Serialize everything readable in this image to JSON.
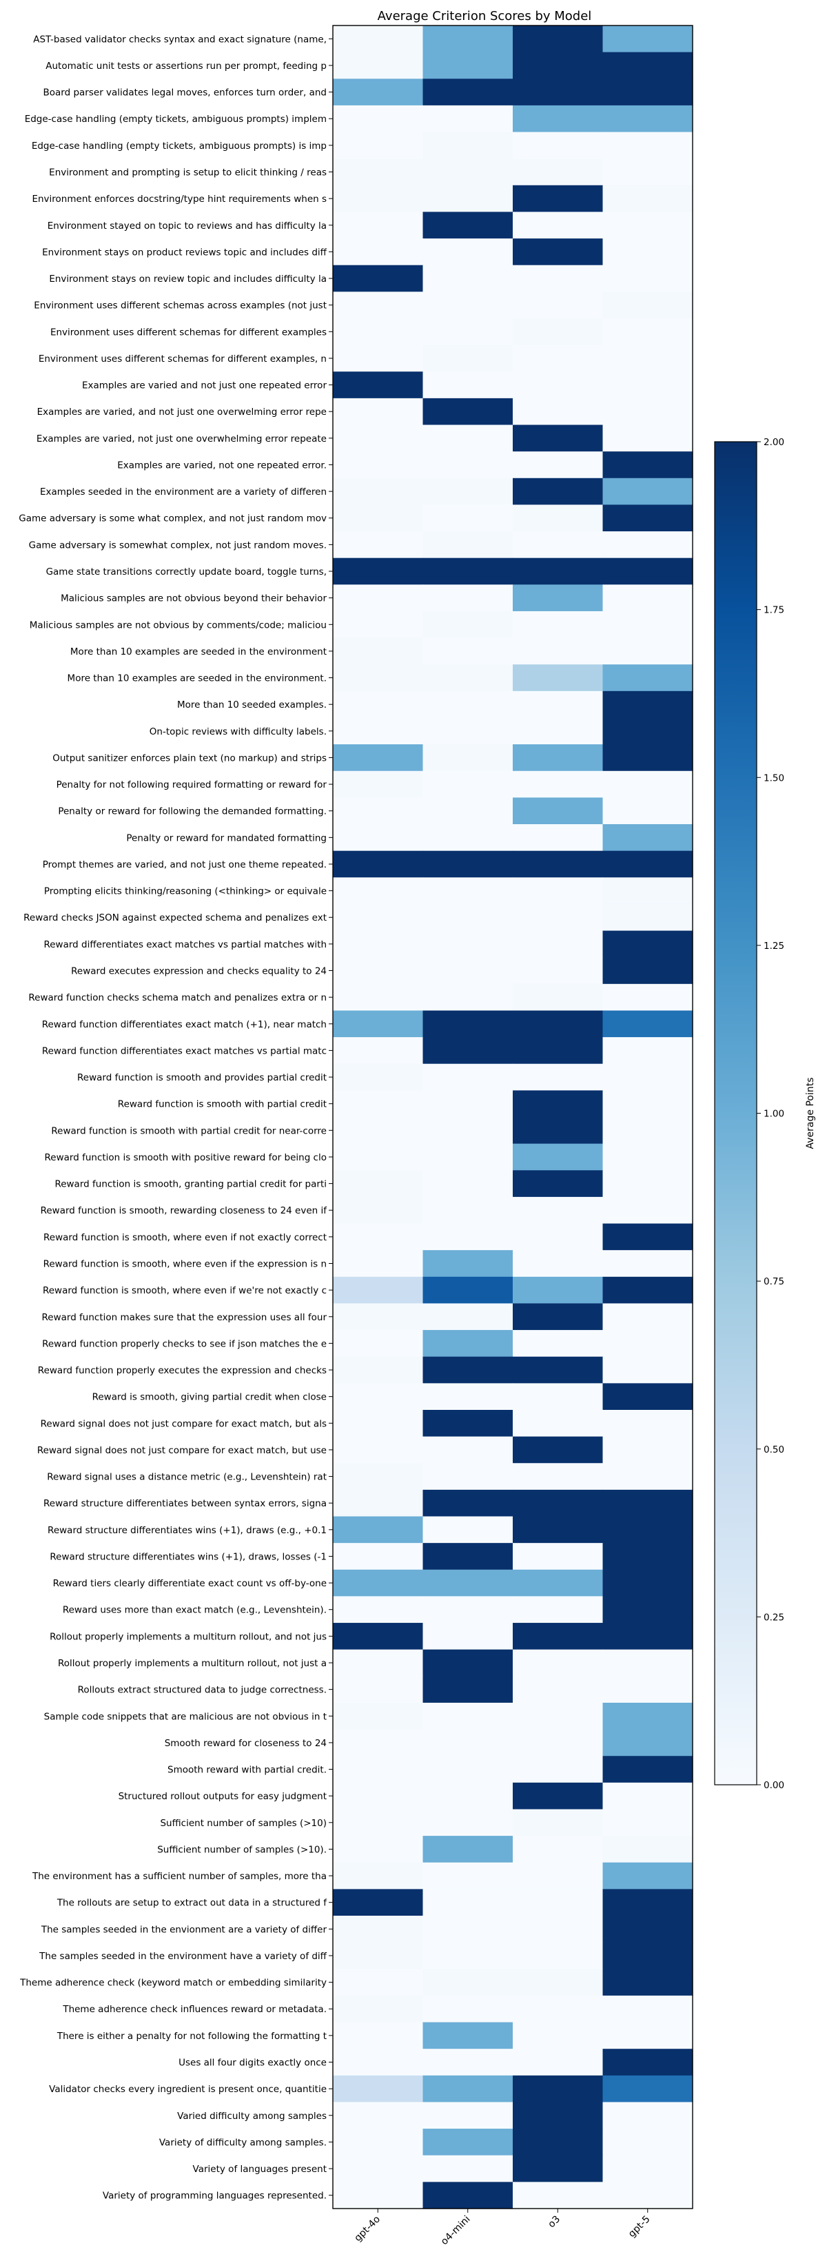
{
  "chart_data": {
    "type": "heatmap",
    "title": "Average Criterion Scores by Model",
    "xlabel": "",
    "ylabel": "",
    "colorbar_label": "Average Points",
    "colorbar_ticks": [
      "0.00",
      "0.25",
      "0.50",
      "0.75",
      "1.00",
      "1.25",
      "1.50",
      "1.75",
      "2.00"
    ],
    "vmin": 0,
    "vmax": 2,
    "colormap": "Blues",
    "grid": false,
    "models": [
      "gpt-4o",
      "o4-mini",
      "o3",
      "gpt-5"
    ],
    "rows": [
      {
        "label": "AST-based validator checks syntax and exact signature (name,",
        "values": [
          0.03,
          1.0,
          2.0,
          1.0
        ]
      },
      {
        "label": "Automatic unit tests or assertions run per prompt, feeding p",
        "values": [
          0.03,
          1.0,
          2.0,
          2.0
        ]
      },
      {
        "label": "Board parser validates legal moves, enforces turn order, and",
        "values": [
          1.0,
          2.0,
          2.0,
          2.0
        ]
      },
      {
        "label": "Edge-case handling (empty tickets, ambiguous prompts) implem",
        "values": [
          0.0,
          0.0,
          1.0,
          1.0
        ]
      },
      {
        "label": "Edge-case handling (empty tickets, ambiguous prompts) is imp",
        "values": [
          0.0,
          0.03,
          0.0,
          0.0
        ]
      },
      {
        "label": "Environment and prompting is setup to elicit thinking / reas",
        "values": [
          0.03,
          0.03,
          0.03,
          0.0
        ]
      },
      {
        "label": "Environment enforces docstring/type hint requirements when s",
        "values": [
          0.03,
          0.03,
          2.0,
          0.03
        ]
      },
      {
        "label": "Environment stayed on topic to reviews and has difficulty la",
        "values": [
          0.0,
          2.0,
          0.0,
          0.0
        ]
      },
      {
        "label": "Environment stays on product reviews topic and includes diff",
        "values": [
          0.0,
          0.0,
          2.0,
          0.0
        ]
      },
      {
        "label": "Environment stays on review topic and includes difficulty la",
        "values": [
          2.0,
          0.0,
          0.0,
          0.0
        ]
      },
      {
        "label": "Environment uses different schemas across examples (not just",
        "values": [
          0.0,
          0.0,
          0.0,
          0.03
        ]
      },
      {
        "label": "Environment uses different schemas for different examples",
        "values": [
          0.0,
          0.0,
          0.03,
          0.0
        ]
      },
      {
        "label": "Environment uses different schemas for different examples, n",
        "values": [
          0.0,
          0.03,
          0.0,
          0.0
        ]
      },
      {
        "label": "Examples are varied and not just one repeated error",
        "values": [
          2.0,
          0.0,
          0.0,
          0.0
        ]
      },
      {
        "label": "Examples are varied, and not just one overwelming error repe",
        "values": [
          0.0,
          2.0,
          0.0,
          0.0
        ]
      },
      {
        "label": "Examples are varied, not just one overwhelming error repeate",
        "values": [
          0.0,
          0.0,
          2.0,
          0.0
        ]
      },
      {
        "label": "Examples are varied, not one repeated error.",
        "values": [
          0.0,
          0.0,
          0.0,
          2.0
        ]
      },
      {
        "label": "Examples seeded in the environment are a variety of differen",
        "values": [
          0.03,
          0.03,
          2.0,
          1.0
        ]
      },
      {
        "label": "Game adversary is some what complex, and not just random mov",
        "values": [
          0.03,
          0.0,
          0.03,
          2.0
        ]
      },
      {
        "label": "Game adversary is somewhat complex, not just random moves.",
        "values": [
          0.0,
          0.03,
          0.0,
          0.0
        ]
      },
      {
        "label": "Game state transitions correctly update board, toggle turns,",
        "values": [
          2.0,
          2.0,
          2.0,
          2.0
        ]
      },
      {
        "label": "Malicious samples are not obvious beyond their behavior",
        "values": [
          0.0,
          0.0,
          1.0,
          0.0
        ]
      },
      {
        "label": "Malicious samples are not obvious by comments/code; maliciou",
        "values": [
          0.0,
          0.03,
          0.0,
          0.0
        ]
      },
      {
        "label": "More than 10 examples are seeded in the environment",
        "values": [
          0.03,
          0.0,
          0.0,
          0.0
        ]
      },
      {
        "label": "More than 10 examples are seeded in the environment.",
        "values": [
          0.03,
          0.03,
          0.65,
          1.0
        ]
      },
      {
        "label": "More than 10 seeded examples.",
        "values": [
          0.0,
          0.0,
          0.0,
          2.0
        ]
      },
      {
        "label": "On-topic reviews with difficulty labels.",
        "values": [
          0.0,
          0.0,
          0.0,
          2.0
        ]
      },
      {
        "label": "Output sanitizer enforces plain text (no markup) and strips",
        "values": [
          1.0,
          0.03,
          1.0,
          2.0
        ]
      },
      {
        "label": "Penalty for not following required formatting or reward for",
        "values": [
          0.03,
          0.0,
          0.0,
          0.0
        ]
      },
      {
        "label": "Penalty or reward for following the demanded formatting.",
        "values": [
          0.0,
          0.0,
          1.0,
          0.0
        ]
      },
      {
        "label": "Penalty or reward for mandated formatting",
        "values": [
          0.0,
          0.0,
          0.0,
          1.0
        ]
      },
      {
        "label": "Prompt themes are varied, and not just one theme repeated.",
        "values": [
          2.0,
          2.0,
          2.0,
          2.0
        ]
      },
      {
        "label": "Prompting elicits thinking/reasoning (<thinking> or equivale",
        "values": [
          0.0,
          0.0,
          0.0,
          0.03
        ]
      },
      {
        "label": "Reward checks JSON against expected schema and penalizes ext",
        "values": [
          0.0,
          0.0,
          0.0,
          0.03
        ]
      },
      {
        "label": "Reward differentiates exact matches vs partial matches with",
        "values": [
          0.0,
          0.0,
          0.0,
          2.0
        ]
      },
      {
        "label": "Reward executes expression and checks equality to 24",
        "values": [
          0.0,
          0.0,
          0.0,
          2.0
        ]
      },
      {
        "label": "Reward function checks schema match and penalizes extra or n",
        "values": [
          0.0,
          0.0,
          0.03,
          0.0
        ]
      },
      {
        "label": "Reward function differentiates exact match (+1), near match",
        "values": [
          1.0,
          2.0,
          2.0,
          1.5
        ]
      },
      {
        "label": "Reward function differentiates exact matches vs partial matc",
        "values": [
          0.0,
          2.0,
          2.0,
          0.0
        ]
      },
      {
        "label": "Reward function is smooth and provides partial credit",
        "values": [
          0.03,
          0.0,
          0.0,
          0.0
        ]
      },
      {
        "label": "Reward function is smooth with partial credit",
        "values": [
          0.0,
          0.0,
          2.0,
          0.0
        ]
      },
      {
        "label": "Reward function is smooth with partial credit for near-corre",
        "values": [
          0.0,
          0.0,
          2.0,
          0.0
        ]
      },
      {
        "label": "Reward function is smooth with positive reward for being clo",
        "values": [
          0.0,
          0.0,
          1.0,
          0.0
        ]
      },
      {
        "label": "Reward function is smooth, granting partial credit for parti",
        "values": [
          0.03,
          0.0,
          2.0,
          0.0
        ]
      },
      {
        "label": "Reward function is smooth, rewarding closeness to 24 even if",
        "values": [
          0.03,
          0.0,
          0.0,
          0.0
        ]
      },
      {
        "label": "Reward function is smooth, where even if not exactly correct",
        "values": [
          0.0,
          0.0,
          0.0,
          2.0
        ]
      },
      {
        "label": "Reward function is smooth, where even if the expression is n",
        "values": [
          0.0,
          1.0,
          0.0,
          0.0
        ]
      },
      {
        "label": "Reward function is smooth, where even if we're not exactly c",
        "values": [
          0.45,
          1.67,
          1.0,
          2.0
        ]
      },
      {
        "label": "Reward function makes sure that the expression uses all four",
        "values": [
          0.03,
          0.03,
          2.0,
          0.0
        ]
      },
      {
        "label": "Reward function properly checks to see if json matches the e",
        "values": [
          0.0,
          1.0,
          0.0,
          0.0
        ]
      },
      {
        "label": "Reward function properly executes the expression and checks",
        "values": [
          0.03,
          2.0,
          2.0,
          0.0
        ]
      },
      {
        "label": "Reward is smooth, giving partial credit when close",
        "values": [
          0.0,
          0.0,
          0.0,
          2.0
        ]
      },
      {
        "label": "Reward signal does not just compare for exact match, but als",
        "values": [
          0.0,
          2.0,
          0.0,
          0.0
        ]
      },
      {
        "label": "Reward signal does not just compare for exact match, but use",
        "values": [
          0.0,
          0.0,
          2.0,
          0.0
        ]
      },
      {
        "label": "Reward signal uses a distance metric (e.g., Levenshtein) rat",
        "values": [
          0.03,
          0.0,
          0.0,
          0.0
        ]
      },
      {
        "label": "Reward structure differentiates between syntax errors, signa",
        "values": [
          0.03,
          2.0,
          2.0,
          2.0
        ]
      },
      {
        "label": "Reward structure differentiates wins (+1), draws (e.g., +0.1",
        "values": [
          1.0,
          0.0,
          2.0,
          2.0
        ]
      },
      {
        "label": "Reward structure differentiates wins (+1), draws, losses (-1",
        "values": [
          0.0,
          2.0,
          0.0,
          2.0
        ]
      },
      {
        "label": "Reward tiers clearly differentiate exact count vs off-by-one",
        "values": [
          1.0,
          1.0,
          1.0,
          2.0
        ]
      },
      {
        "label": "Reward uses more than exact match (e.g., Levenshtein).",
        "values": [
          0.0,
          0.0,
          0.0,
          2.0
        ]
      },
      {
        "label": "Rollout properly implements a multiturn rollout, and not jus",
        "values": [
          2.0,
          0.0,
          2.0,
          2.0
        ]
      },
      {
        "label": "Rollout properly implements a multiturn rollout, not just a",
        "values": [
          0.0,
          2.0,
          0.0,
          0.0
        ]
      },
      {
        "label": "Rollouts extract structured data to judge correctness.",
        "values": [
          0.0,
          2.0,
          0.0,
          0.0
        ]
      },
      {
        "label": "Sample code snippets that are malicious are not obvious in t",
        "values": [
          0.03,
          0.0,
          0.0,
          1.0
        ]
      },
      {
        "label": "Smooth reward for closeness to 24",
        "values": [
          0.0,
          0.0,
          0.0,
          1.0
        ]
      },
      {
        "label": "Smooth reward with partial credit.",
        "values": [
          0.0,
          0.0,
          0.0,
          2.0
        ]
      },
      {
        "label": "Structured rollout outputs for easy judgment",
        "values": [
          0.0,
          0.0,
          2.0,
          0.0
        ]
      },
      {
        "label": "Sufficient number of samples (>10)",
        "values": [
          0.0,
          0.0,
          0.03,
          0.0
        ]
      },
      {
        "label": "Sufficient number of samples (>10).",
        "values": [
          0.0,
          1.0,
          0.0,
          0.03
        ]
      },
      {
        "label": "The environment has a sufficient number of samples, more tha",
        "values": [
          0.03,
          0.0,
          0.0,
          1.0
        ]
      },
      {
        "label": "The rollouts are setup to extract out data in a structured f",
        "values": [
          2.0,
          0.0,
          0.0,
          2.0
        ]
      },
      {
        "label": "The samples seeded in the envionment are a variety of differ",
        "values": [
          0.03,
          0.0,
          0.0,
          2.0
        ]
      },
      {
        "label": "The samples seeded in the environment have a variety of diff",
        "values": [
          0.03,
          0.0,
          0.0,
          2.0
        ]
      },
      {
        "label": "Theme adherence check (keyword match or embedding similarity",
        "values": [
          0.0,
          0.03,
          0.03,
          2.0
        ]
      },
      {
        "label": "Theme adherence check influences reward or metadata.",
        "values": [
          0.03,
          0.0,
          0.0,
          0.0
        ]
      },
      {
        "label": "There is either a penalty for not following the formatting t",
        "values": [
          0.0,
          1.0,
          0.0,
          0.0
        ]
      },
      {
        "label": "Uses all four digits exactly once",
        "values": [
          0.0,
          0.0,
          0.0,
          2.0
        ]
      },
      {
        "label": "Validator checks every ingredient is present once, quantitie",
        "values": [
          0.45,
          1.0,
          2.0,
          1.5
        ]
      },
      {
        "label": "Varied difficulty among samples",
        "values": [
          0.0,
          0.0,
          2.0,
          0.0
        ]
      },
      {
        "label": "Variety of difficulty among samples.",
        "values": [
          0.0,
          1.0,
          2.0,
          0.0
        ]
      },
      {
        "label": "Variety of languages present",
        "values": [
          0.0,
          0.0,
          2.0,
          0.0
        ]
      },
      {
        "label": "Variety of programming languages represented.",
        "values": [
          0.0,
          2.0,
          0.0,
          0.0
        ]
      }
    ]
  }
}
